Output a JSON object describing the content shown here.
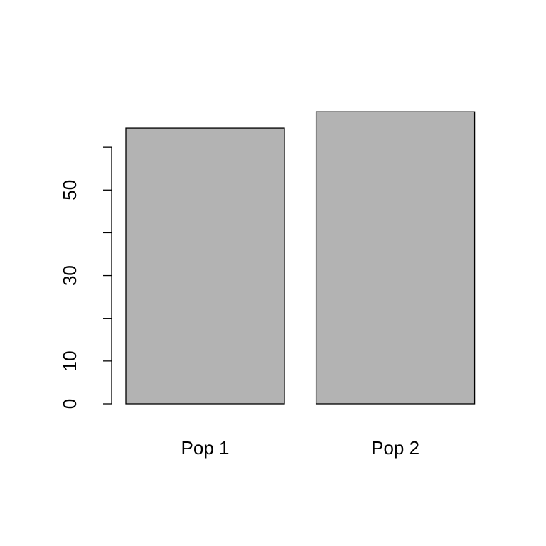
{
  "chart_data": {
    "type": "bar",
    "categories": [
      "Pop 1",
      "Pop 2"
    ],
    "values": [
      64.5,
      68.3
    ],
    "color": "#b3b3b3",
    "ylim": [
      0,
      70
    ],
    "yticks": [
      0,
      10,
      {
        "value": 20,
        "label": null
      },
      30,
      {
        "value": 40,
        "label": null
      },
      50,
      {
        "value": 60,
        "label": null
      }
    ],
    "grid": false
  }
}
